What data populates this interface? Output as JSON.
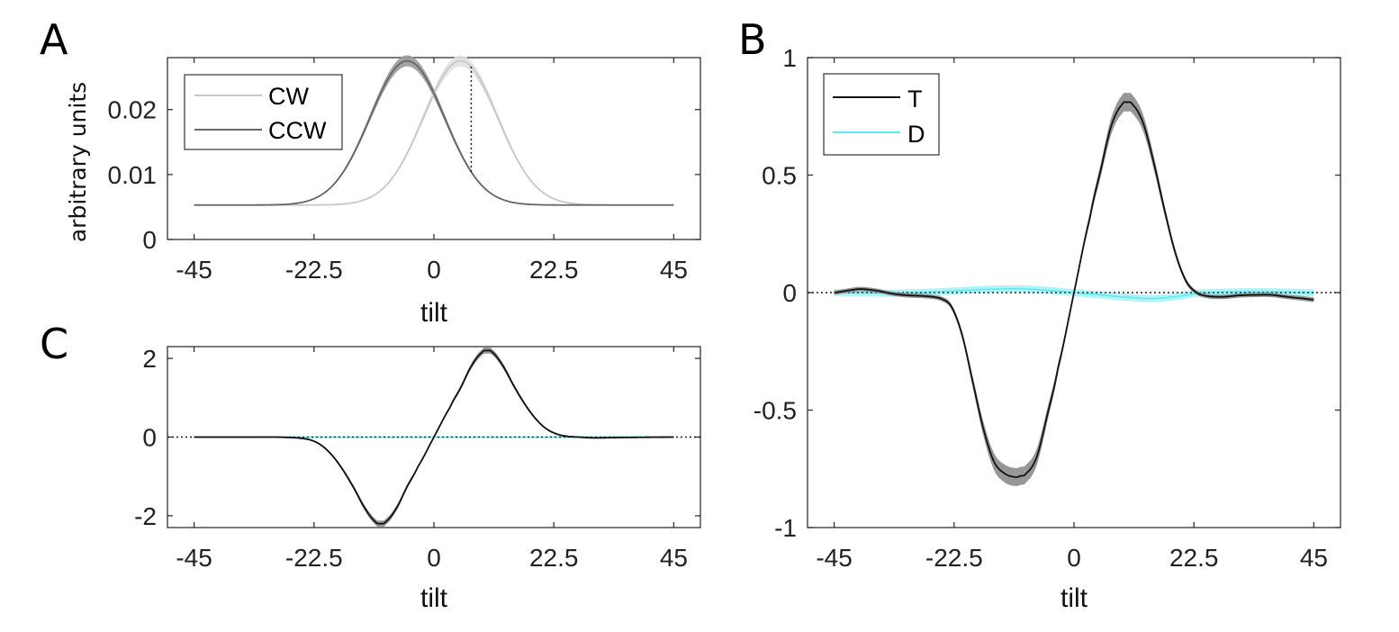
{
  "panel_labels": [
    "A",
    "B",
    "C"
  ],
  "colors": {
    "cw": "#c8c8c8",
    "cw_band": "#e0e0e0",
    "ccw": "#666666",
    "ccw_band": "#999999",
    "t": "#111111",
    "t_band": "#8c8c8c",
    "d": "#5fe8ee",
    "d_band": "#a6f4f7",
    "axis": "#333333"
  },
  "chart_data": [
    {
      "id": "A",
      "type": "line",
      "xlabel": "tilt",
      "ylabel": "arbitrary units",
      "xlim": [
        -50,
        50
      ],
      "ylim": [
        0,
        0.028
      ],
      "xticks": [
        -45,
        -22.5,
        0,
        22.5,
        45
      ],
      "xtick_labels": [
        "-45",
        "-22.5",
        "0",
        "22.5",
        "45"
      ],
      "yticks": [
        0,
        0.01,
        0.02
      ],
      "ytick_labels": [
        "0",
        "0.01",
        "0.02"
      ],
      "legend": {
        "position": "top-left",
        "entries": [
          "CW",
          "CCW"
        ]
      },
      "series": [
        {
          "name": "CW",
          "model": "gaussian",
          "center": 5,
          "sd": 7,
          "baseline": 0.0053,
          "peak": 0.0275,
          "band": 0.0008
        },
        {
          "name": "CCW",
          "model": "gaussian",
          "center": -5,
          "sd": 7,
          "baseline": 0.0053,
          "peak": 0.0275,
          "band": 0.0008
        }
      ],
      "x_range": [
        -45,
        45
      ],
      "annotation": {
        "type": "dotted-vertical",
        "x": 7,
        "from_series": "CCW",
        "to_series": "CW"
      }
    },
    {
      "id": "B",
      "type": "line",
      "xlabel": "tilt",
      "ylabel": "",
      "xlim": [
        -50,
        50
      ],
      "ylim": [
        -1,
        1
      ],
      "xticks": [
        -45,
        -22.5,
        0,
        22.5,
        45
      ],
      "xtick_labels": [
        "-45",
        "-22.5",
        "0",
        "22.5",
        "45"
      ],
      "yticks": [
        -1,
        -0.5,
        0,
        0.5,
        1
      ],
      "ytick_labels": [
        "-1",
        "-0.5",
        "0",
        "0.5",
        "1"
      ],
      "legend": {
        "position": "top-left",
        "entries": [
          "T",
          "D"
        ]
      },
      "zero_line": "dotted",
      "series": [
        {
          "name": "T",
          "x": [
            -45,
            -42,
            -40,
            -37,
            -34,
            -31,
            -28,
            -25,
            -23,
            -21,
            -19,
            -17,
            -15,
            -13,
            -11,
            -10,
            -9,
            -7,
            -5,
            -3,
            0,
            3,
            5,
            7,
            9,
            10,
            11,
            13,
            15,
            17,
            19,
            21,
            23,
            25,
            28,
            31,
            34,
            37,
            40,
            43,
            45
          ],
          "y": [
            0,
            0.01,
            0.015,
            0.008,
            -0.005,
            -0.012,
            -0.015,
            -0.025,
            -0.06,
            -0.18,
            -0.38,
            -0.58,
            -0.72,
            -0.77,
            -0.785,
            -0.78,
            -0.77,
            -0.7,
            -0.52,
            -0.32,
            0,
            0.32,
            0.52,
            0.71,
            0.8,
            0.81,
            0.8,
            0.72,
            0.55,
            0.35,
            0.17,
            0.05,
            0.0,
            -0.015,
            -0.018,
            -0.012,
            -0.01,
            -0.01,
            -0.018,
            -0.025,
            -0.03
          ],
          "band": 0.03
        },
        {
          "name": "D",
          "x": [
            -45,
            -40,
            -35,
            -30,
            -25,
            -20,
            -15,
            -10,
            -5,
            0,
            5,
            10,
            15,
            20,
            23,
            25,
            30,
            35,
            40,
            45
          ],
          "y": [
            0,
            0,
            -0.003,
            0,
            0.004,
            0.01,
            0.015,
            0.016,
            0.01,
            0,
            -0.01,
            -0.02,
            -0.025,
            -0.015,
            -0.003,
            0,
            0.003,
            0.004,
            0.002,
            0
          ],
          "band": 0.015
        }
      ]
    },
    {
      "id": "C",
      "type": "line",
      "xlabel": "tilt",
      "ylabel": "",
      "xlim": [
        -50,
        50
      ],
      "ylim": [
        -2.3,
        2.3
      ],
      "xticks": [
        -45,
        -22.5,
        0,
        22.5,
        45
      ],
      "xtick_labels": [
        "-45",
        "-22.5",
        "0",
        "22.5",
        "45"
      ],
      "yticks": [
        -2,
        0,
        2
      ],
      "ytick_labels": [
        "-2",
        "0",
        "2"
      ],
      "zero_line": "dotted",
      "series": [
        {
          "name": "T",
          "x": [
            -45,
            -35,
            -30,
            -27,
            -25,
            -23,
            -21,
            -19,
            -17,
            -15,
            -13,
            -11,
            -10,
            -9,
            -7,
            -5,
            -3,
            0,
            3,
            5,
            7,
            9,
            10,
            11,
            13,
            15,
            17,
            19,
            21,
            23,
            25,
            27,
            30,
            35,
            45
          ],
          "y": [
            0,
            0,
            0,
            -0.01,
            -0.03,
            -0.08,
            -0.22,
            -0.48,
            -0.85,
            -1.3,
            -1.8,
            -2.15,
            -2.2,
            -2.15,
            -1.8,
            -1.25,
            -0.75,
            0,
            0.75,
            1.25,
            1.8,
            2.15,
            2.2,
            2.15,
            1.8,
            1.3,
            0.85,
            0.48,
            0.22,
            0.08,
            0.02,
            0,
            -0.02,
            -0.01,
            0
          ],
          "band": 0.06
        },
        {
          "name": "D",
          "x": [
            -45,
            45
          ],
          "y": [
            0,
            0
          ],
          "band": 0.02
        }
      ]
    }
  ]
}
